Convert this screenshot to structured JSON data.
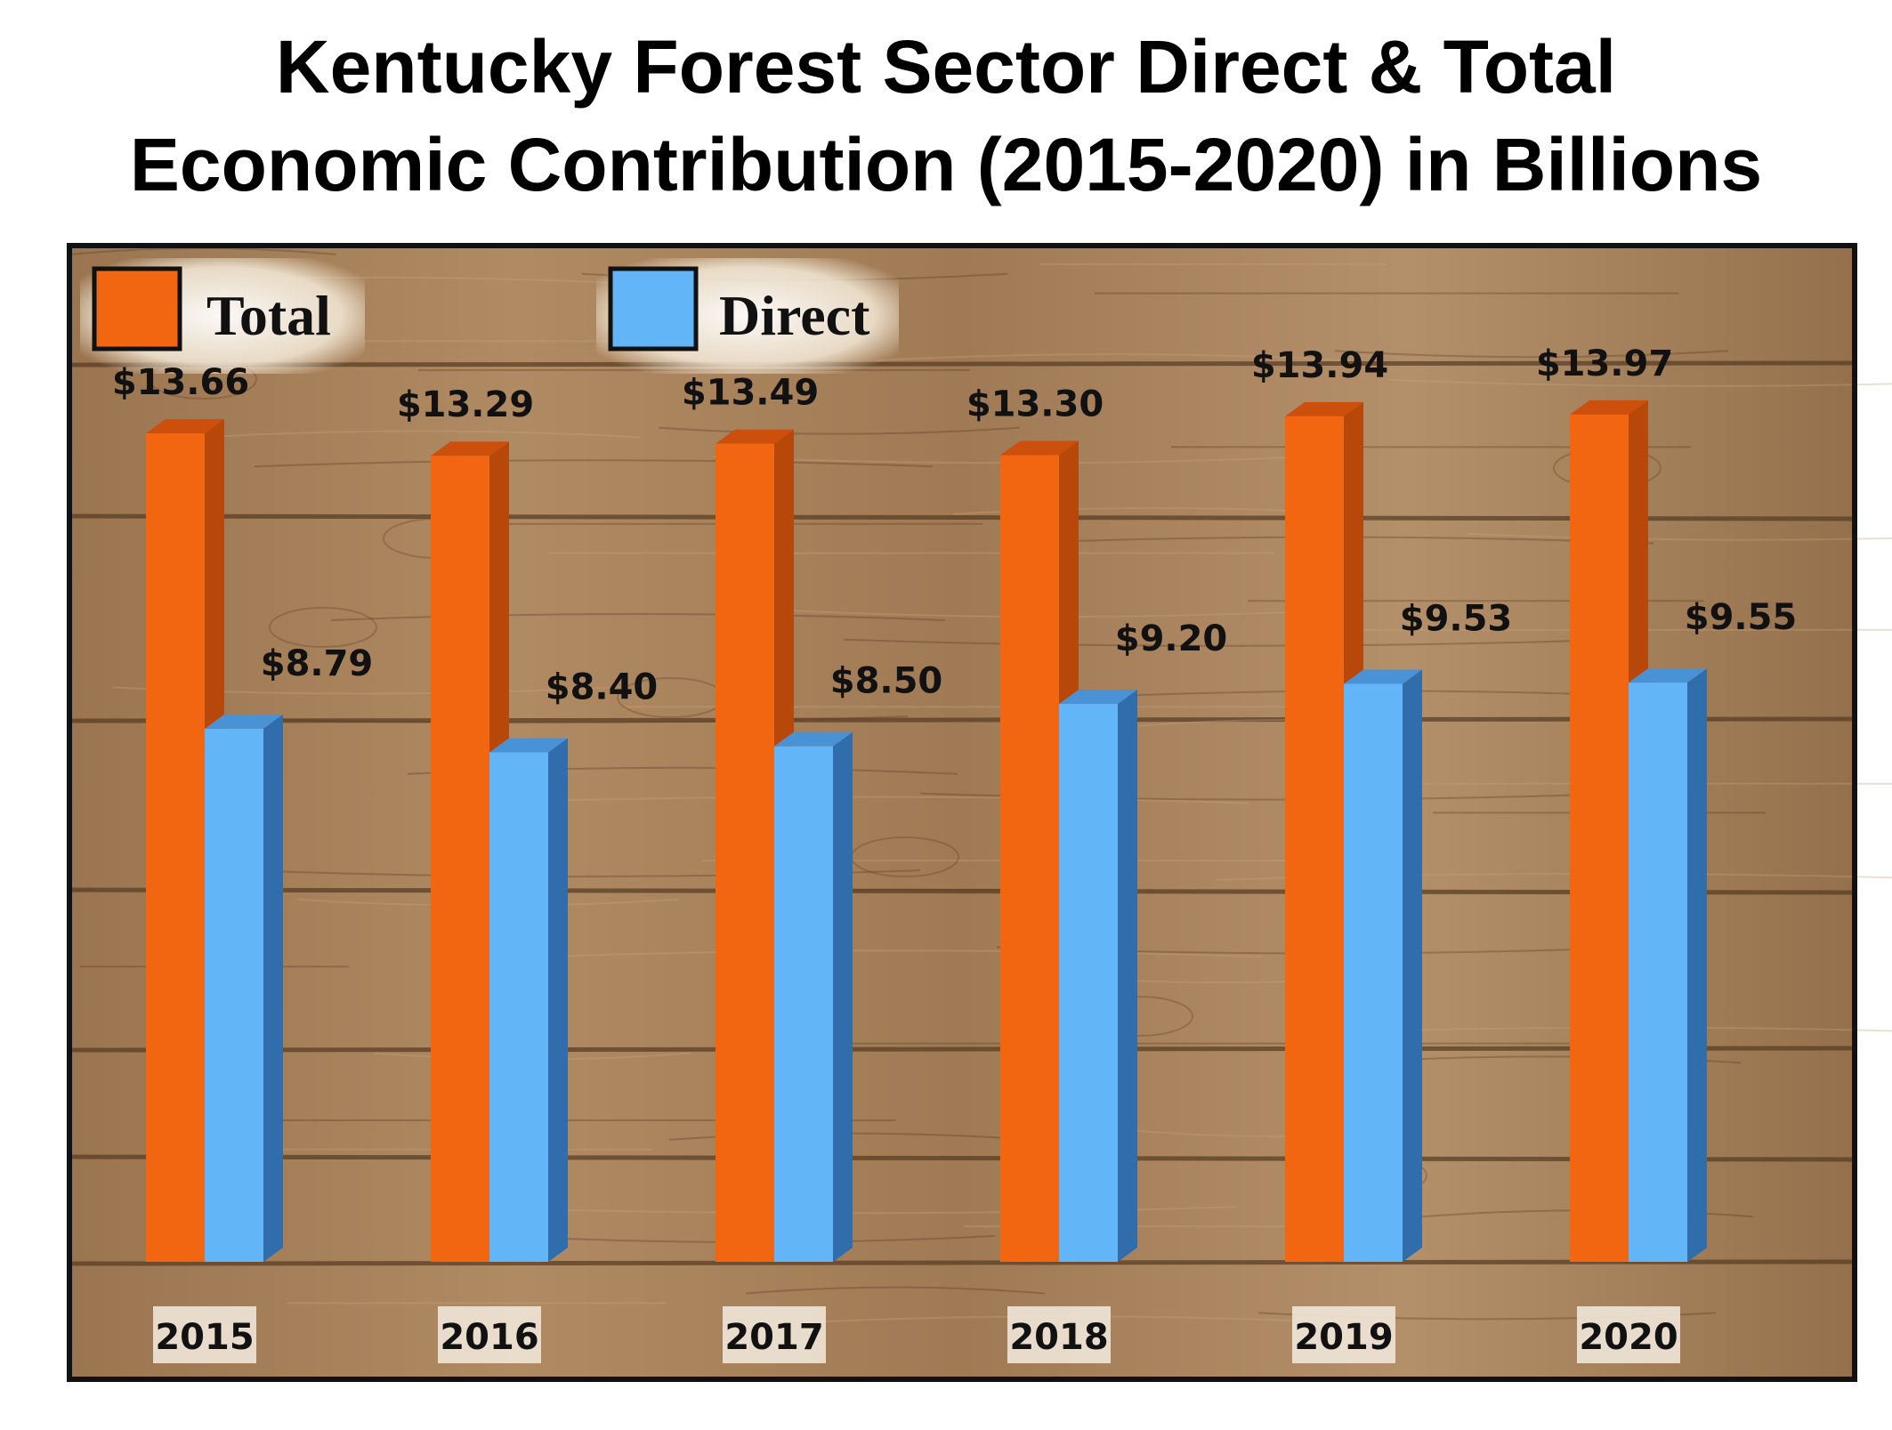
{
  "title_lines": [
    "Kentucky Forest Sector Direct & Total",
    "Economic Contribution (2015-2020) in Billions"
  ],
  "colors": {
    "total_front": "#f26612",
    "total_side": "#b8470a",
    "total_top": "#cc4f0c",
    "direct_front": "#62b6f7",
    "direct_side": "#2f6eaa",
    "direct_top": "#4a92d6",
    "wood_base": "#a27c56",
    "wood_light": "#c6a37b",
    "wood_dark": "#5a3d25"
  },
  "chart_data": {
    "type": "bar",
    "title": "Kentucky Forest Sector Direct & Total Economic Contribution (2015-2020) in Billions",
    "categories": [
      "2015",
      "2016",
      "2017",
      "2018",
      "2019",
      "2020"
    ],
    "series": [
      {
        "name": "Total",
        "values": [
          13.66,
          13.29,
          13.49,
          13.3,
          13.94,
          13.97
        ],
        "labels": [
          "$13.66",
          "$13.29",
          "$13.49",
          "$13.30",
          "$13.94",
          "$13.97"
        ]
      },
      {
        "name": "Direct",
        "values": [
          8.79,
          8.4,
          8.5,
          9.2,
          9.53,
          9.55
        ],
        "labels": [
          "$8.79",
          "$8.40",
          "$8.50",
          "$9.20",
          "$9.53",
          "$9.55"
        ]
      }
    ],
    "ylim": [
      0,
      17.5
    ],
    "grid": false,
    "legend": "top-left",
    "style": "3d-bar"
  }
}
